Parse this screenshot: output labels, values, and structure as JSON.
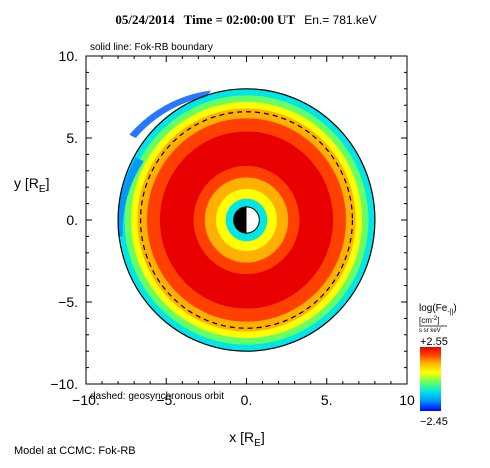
{
  "header": {
    "date": "05/24/2014",
    "time_label": "Time = 02:00:00 UT",
    "energy_label": "En.= 781.keV"
  },
  "annotations": {
    "solid_line": "solid line: Fok-RB boundary",
    "dashed_line": "dashed: geosynchronous orbit",
    "model_credit": "Model at CCMC: Fok-RB"
  },
  "colorbar": {
    "title": "log(Fe",
    "title_sub": "-||",
    "title_close": ")",
    "units_top": "[cm",
    "units_top_sup": "-2",
    "units_top_close": "]",
    "units_bottom": "s sr keV",
    "max_label": "+2.55",
    "min_label": "−2.45",
    "colors": [
      "#0000ff",
      "#0090ff",
      "#00e5e5",
      "#66ff66",
      "#ffff00",
      "#ffb000",
      "#ff4000",
      "#e80000"
    ]
  },
  "chart_data": {
    "type": "heatmap",
    "title": "05/24/2014 Time = 02:00:00 UT En.= 781.keV",
    "xlabel": "x [R",
    "xlabel_sub": "E",
    "xlabel_close": "]",
    "ylabel": "y [R",
    "ylabel_sub": "E",
    "ylabel_close": "]",
    "xlim": [
      -10,
      10
    ],
    "ylim": [
      -10,
      10
    ],
    "x_ticks": [
      {
        "value": -10,
        "label": "−10."
      },
      {
        "value": -5,
        "label": "−5."
      },
      {
        "value": 0,
        "label": "0."
      },
      {
        "value": 5,
        "label": "5."
      },
      {
        "value": 10,
        "label": "10"
      }
    ],
    "y_ticks": [
      {
        "value": 10,
        "label": "10."
      },
      {
        "value": 5,
        "label": "5."
      },
      {
        "value": 0,
        "label": "0."
      },
      {
        "value": -5,
        "label": "−5."
      },
      {
        "value": -10,
        "label": "−10."
      }
    ],
    "colorbar_range": [
      -2.45,
      2.55
    ],
    "geosynchronous_orbit_radius": 6.6,
    "boundary_radius": 8.0,
    "earth_radius": 0.8,
    "flux_rings": [
      {
        "r_inner": 0.8,
        "r_outer": 1.3,
        "color": "#00e5e5"
      },
      {
        "r_inner": 1.3,
        "r_outer": 1.9,
        "color": "#ffff00"
      },
      {
        "r_inner": 1.9,
        "r_outer": 2.6,
        "color": "#ffb000"
      },
      {
        "r_inner": 2.6,
        "r_outer": 3.3,
        "color": "#ff4000"
      },
      {
        "r_inner": 3.3,
        "r_outer": 5.4,
        "color": "#e80000"
      },
      {
        "r_inner": 5.4,
        "r_outer": 6.2,
        "color": "#ff4000"
      },
      {
        "r_inner": 6.2,
        "r_outer": 6.8,
        "color": "#ffb000"
      },
      {
        "r_inner": 6.8,
        "r_outer": 7.2,
        "color": "#ffff00"
      },
      {
        "r_inner": 7.2,
        "r_outer": 7.6,
        "color": "#66ff66"
      },
      {
        "r_inner": 7.6,
        "r_outer": 8.0,
        "color": "#00e5e5"
      }
    ]
  }
}
